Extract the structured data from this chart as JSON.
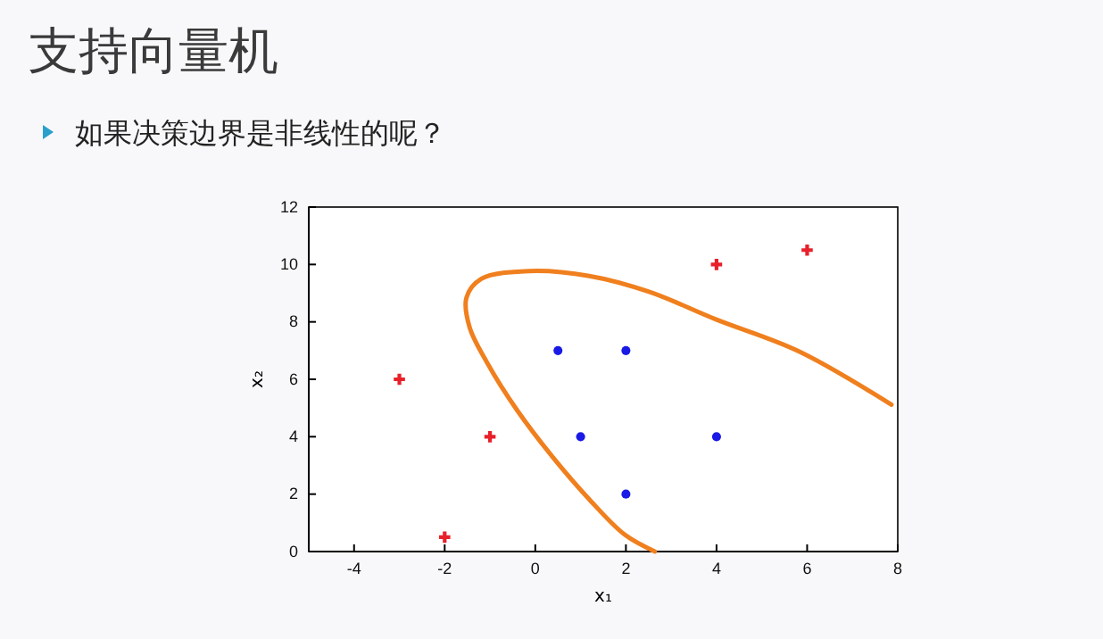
{
  "chart_data": {
    "type": "scatter",
    "title": "支持向量机",
    "subtitle": "如果决策边界是非线性的呢？",
    "xlabel": "x₁",
    "ylabel": "x₂",
    "xlim": [
      -5,
      8
    ],
    "xticks": [
      -4,
      -2,
      0,
      2,
      4,
      6,
      8
    ],
    "ylim": [
      0,
      12
    ],
    "yticks": [
      0,
      2,
      4,
      6,
      8,
      10,
      12
    ],
    "grid": false,
    "legend": false,
    "series": [
      {
        "color": "#e8202a",
        "marker": "cross",
        "x": [
          -3,
          -1,
          -2,
          4,
          6
        ],
        "values": [
          6,
          4,
          0.5,
          10,
          10.5
        ]
      },
      {
        "color": "#1a1ae6",
        "marker": "circle",
        "x": [
          0.5,
          2,
          1,
          4,
          2
        ],
        "values": [
          7,
          7,
          4,
          4,
          2
        ]
      },
      {
        "type": "line",
        "color": "#f07f1e",
        "marker": "none",
        "line_style": "solid",
        "x": [
          7.86,
          5.81,
          4.0,
          2.51,
          1.19,
          -0.13,
          -1.19,
          -1.52,
          -1.45,
          -1.06,
          -0.4,
          0.4,
          1.19,
          1.98,
          2.64
        ],
        "values": [
          5.12,
          6.98,
          8.08,
          9.05,
          9.6,
          9.77,
          9.5,
          8.84,
          7.81,
          6.57,
          4.92,
          3.26,
          1.82,
          0.58,
          0
        ]
      }
    ]
  }
}
